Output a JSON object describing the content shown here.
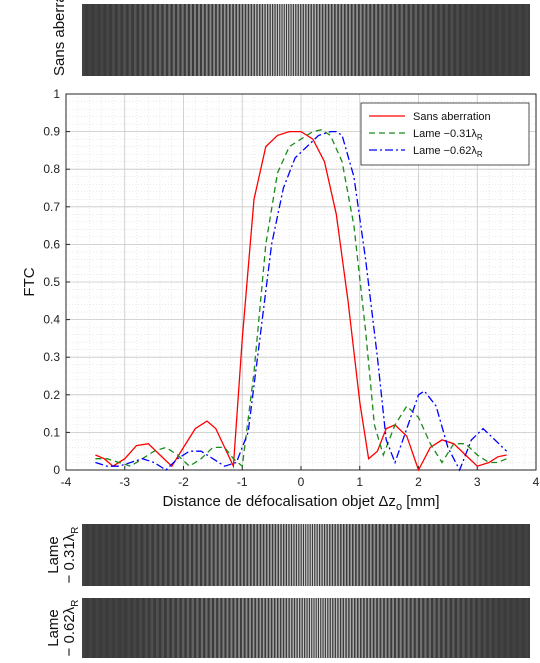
{
  "strips": {
    "top_label": "Sans aberration",
    "mid_label_line1": "Lame",
    "mid_label_line2": "− 0.31λ",
    "bot_label_line1": "Lame",
    "bot_label_line2": "− 0.62λ",
    "subscript": "R"
  },
  "chart_data": {
    "type": "line",
    "xlabel_prefix": "Distance de défocalisation objet Δz",
    "xlabel_sub": "o",
    "xlabel_suffix": " [mm]",
    "ylabel": "FTC",
    "xlim": [
      -4,
      4
    ],
    "ylim": [
      0,
      1
    ],
    "xticks": [
      -4,
      -3,
      -2,
      -1,
      0,
      1,
      2,
      3,
      4
    ],
    "yticks": [
      0,
      0.1,
      0.2,
      0.3,
      0.4,
      0.5,
      0.6,
      0.7,
      0.8,
      0.9,
      1
    ],
    "grid": true,
    "legend_position": "top-right",
    "series": [
      {
        "name": "Sans aberration",
        "color": "#ff0000",
        "dash": "solid",
        "x": [
          -3.5,
          -3.35,
          -3.2,
          -3.0,
          -2.8,
          -2.6,
          -2.4,
          -2.2,
          -2.0,
          -1.8,
          -1.6,
          -1.45,
          -1.3,
          -1.15,
          -1.0,
          -0.8,
          -0.6,
          -0.4,
          -0.2,
          0.0,
          0.2,
          0.4,
          0.6,
          0.8,
          1.0,
          1.15,
          1.3,
          1.45,
          1.6,
          1.8,
          2.0,
          2.2,
          2.4,
          2.6,
          2.8,
          3.0,
          3.2,
          3.35,
          3.5
        ],
        "values": [
          0.04,
          0.03,
          0.01,
          0.03,
          0.065,
          0.07,
          0.04,
          0.01,
          0.06,
          0.11,
          0.13,
          0.11,
          0.06,
          0.01,
          0.35,
          0.72,
          0.86,
          0.89,
          0.9,
          0.9,
          0.88,
          0.82,
          0.68,
          0.45,
          0.18,
          0.03,
          0.05,
          0.11,
          0.12,
          0.09,
          0.0,
          0.06,
          0.08,
          0.07,
          0.04,
          0.01,
          0.02,
          0.035,
          0.04
        ]
      },
      {
        "name": "Lame −0.31λ",
        "color": "#1a8a1a",
        "dash": "6,4",
        "x": [
          -3.5,
          -3.3,
          -3.1,
          -2.9,
          -2.7,
          -2.5,
          -2.3,
          -2.1,
          -1.9,
          -1.7,
          -1.5,
          -1.3,
          -1.15,
          -1.0,
          -0.8,
          -0.6,
          -0.4,
          -0.2,
          0.0,
          0.2,
          0.35,
          0.5,
          0.7,
          0.9,
          1.1,
          1.25,
          1.4,
          1.6,
          1.8,
          2.0,
          2.2,
          2.4,
          2.6,
          2.8,
          3.0,
          3.2,
          3.35,
          3.5
        ],
        "values": [
          0.03,
          0.03,
          0.02,
          0.01,
          0.03,
          0.05,
          0.06,
          0.04,
          0.01,
          0.03,
          0.06,
          0.06,
          0.03,
          0.01,
          0.26,
          0.6,
          0.79,
          0.86,
          0.88,
          0.9,
          0.905,
          0.89,
          0.82,
          0.65,
          0.37,
          0.12,
          0.04,
          0.12,
          0.17,
          0.14,
          0.07,
          0.02,
          0.07,
          0.07,
          0.04,
          0.02,
          0.02,
          0.03
        ]
      },
      {
        "name": "Lame −0.62λ",
        "color": "#0000ff",
        "dash": "8,3,2,3",
        "x": [
          -3.5,
          -3.3,
          -3.1,
          -2.9,
          -2.7,
          -2.5,
          -2.3,
          -2.1,
          -1.9,
          -1.7,
          -1.5,
          -1.3,
          -1.1,
          -0.9,
          -0.7,
          -0.5,
          -0.3,
          -0.1,
          0.1,
          0.3,
          0.5,
          0.6,
          0.7,
          0.9,
          1.1,
          1.3,
          1.45,
          1.6,
          1.8,
          2.0,
          2.1,
          2.3,
          2.5,
          2.7,
          2.9,
          3.1,
          3.3,
          3.5
        ],
        "values": [
          0.02,
          0.01,
          0.01,
          0.02,
          0.03,
          0.02,
          0.0,
          0.03,
          0.05,
          0.05,
          0.03,
          0.01,
          0.02,
          0.1,
          0.35,
          0.6,
          0.75,
          0.83,
          0.86,
          0.89,
          0.9,
          0.9,
          0.89,
          0.78,
          0.56,
          0.3,
          0.08,
          0.02,
          0.11,
          0.2,
          0.21,
          0.17,
          0.06,
          0.0,
          0.08,
          0.11,
          0.08,
          0.05
        ]
      }
    ]
  }
}
